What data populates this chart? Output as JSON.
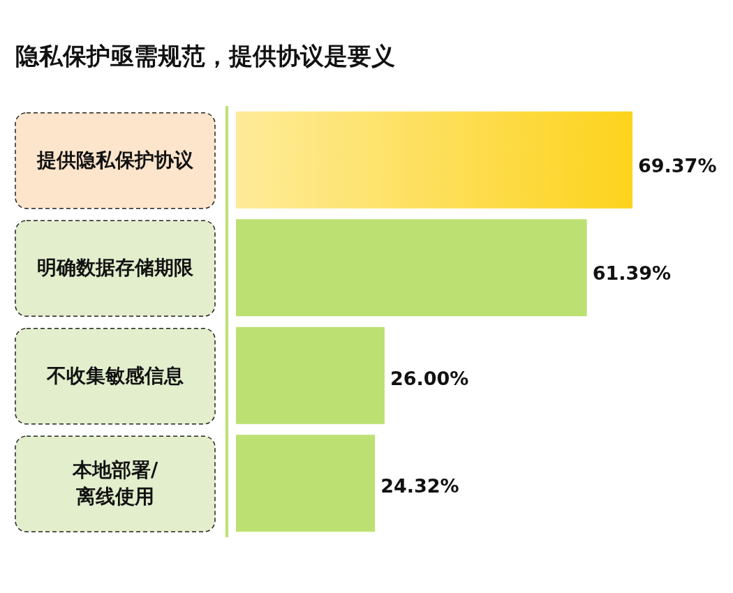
{
  "chart_data": {
    "type": "bar",
    "orientation": "horizontal",
    "title": "隐私保护亟需规范，提供协议是要义",
    "categories": [
      "提供隐私保护协议",
      "明确数据存储期限",
      "不收集敏感信息",
      "本地部署/\n离线使用"
    ],
    "values": [
      69.37,
      61.39,
      26.0,
      24.32
    ],
    "value_labels": [
      "69.37%",
      "61.39%",
      "26.00%",
      "24.32%"
    ],
    "colors": [
      "#fdd31c",
      "#bde072",
      "#bde072",
      "#bde072"
    ]
  }
}
